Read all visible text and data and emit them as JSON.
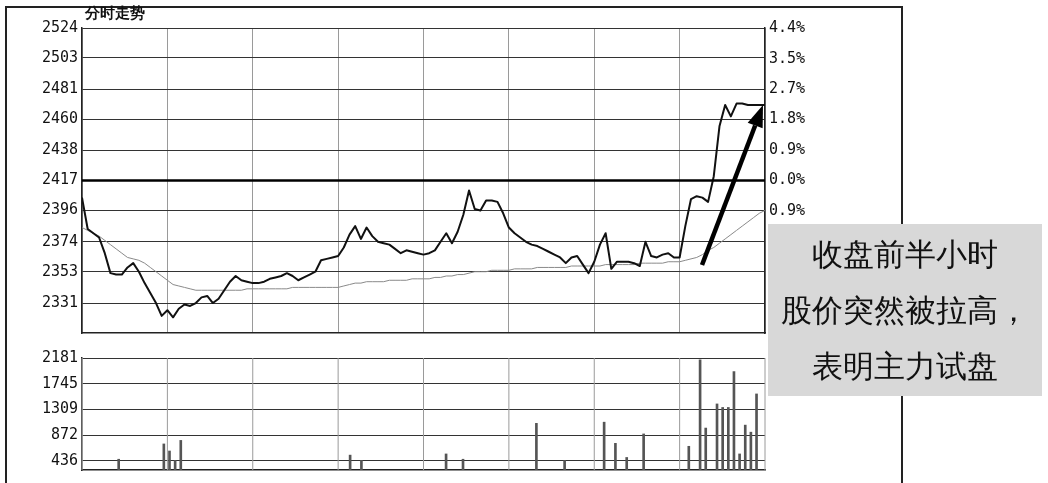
{
  "chart_data": [
    {
      "type": "line",
      "title": "分时走势",
      "categories": [
        null,
        null,
        null,
        null,
        null,
        null,
        null,
        null,
        null,
        null,
        null,
        null,
        null,
        null,
        null,
        null,
        null,
        null,
        null,
        null,
        null,
        null,
        null,
        null,
        null,
        null,
        null,
        null,
        null,
        null,
        null,
        null,
        null,
        null,
        null,
        null,
        null,
        null,
        null,
        null,
        null,
        null,
        null,
        null,
        null,
        null,
        null,
        null,
        null,
        null,
        null,
        null,
        null,
        null,
        null,
        null,
        null,
        null,
        null,
        null,
        null,
        null,
        null,
        null,
        null,
        null,
        null,
        null,
        null,
        null,
        null,
        null,
        null,
        null,
        null,
        null,
        null,
        null,
        null,
        null,
        null,
        null,
        null,
        null,
        null,
        null,
        null,
        null,
        null,
        null,
        null,
        null,
        null,
        null,
        null,
        null,
        null,
        null,
        null,
        null,
        null,
        null,
        null,
        null,
        null,
        null,
        null,
        null,
        null,
        null,
        null,
        null,
        null,
        null,
        null,
        null,
        null,
        null,
        null,
        null,
        null
      ],
      "ylim": [
        2310,
        2524
      ],
      "yticks": [
        2331,
        2353,
        2374,
        2396,
        2417,
        2438,
        2460,
        2481,
        2503,
        2524
      ],
      "y2lim": [
        -4.43,
        4.43
      ],
      "y2ticks": [
        {
          "value": -0.885,
          "label": "0.9%"
        },
        {
          "value": 0,
          "label": "0.0%"
        },
        {
          "value": 0.885,
          "label": "0.9%"
        },
        {
          "value": 1.77,
          "label": "1.8%"
        },
        {
          "value": 2.655,
          "label": "2.7%"
        },
        {
          "value": 3.54,
          "label": "3.5%"
        },
        {
          "value": 4.425,
          "label": "4.4%"
        }
      ],
      "series": [
        {
          "color": "#111111",
          "values": [
            2405,
            2383,
            2380,
            2377,
            2366,
            2352,
            2351,
            2351,
            2356,
            2359,
            2353,
            2345,
            2338,
            2331,
            2322,
            2326,
            2321,
            2327,
            2330,
            2329,
            2331,
            2335,
            2336,
            2331,
            2334,
            2340,
            2346,
            2350,
            2347,
            2346,
            2345,
            2345,
            2346,
            2348,
            2349,
            2350,
            2352,
            2350,
            2347,
            2349,
            2351,
            2353,
            2361,
            2362,
            2363,
            2364,
            2370,
            2379,
            2385,
            2376,
            2384,
            2378,
            2374,
            2373,
            2372,
            2369,
            2366,
            2368,
            2367,
            2366,
            2365,
            2366,
            2368,
            2374,
            2380,
            2373,
            2381,
            2393,
            2410,
            2397,
            2396,
            2403,
            2403,
            2402,
            2394,
            2384,
            2380,
            2377,
            2374,
            2372,
            2371,
            2369,
            2367,
            2365,
            2363,
            2359,
            2363,
            2364,
            2358,
            2352,
            2360,
            2372,
            2380,
            2355,
            2360,
            2360,
            2360,
            2359,
            2357,
            2374,
            2364,
            2363,
            2365,
            2366,
            2363,
            2363,
            2385,
            2404,
            2406,
            2405,
            2402,
            2420,
            2455,
            2470,
            2462,
            2471,
            2471,
            2470,
            2470,
            2470,
            2470
          ]
        },
        {
          "color": "#8a8a8a",
          "values": [
            2384,
            2382,
            2380,
            2378,
            2375,
            2372,
            2369,
            2366,
            2363,
            2362,
            2361,
            2359,
            2356,
            2353,
            2350,
            2347,
            2344,
            2343,
            2342,
            2341,
            2340,
            2340,
            2340,
            2340,
            2340,
            2340,
            2340,
            2340,
            2340,
            2341,
            2341,
            2341,
            2341,
            2341,
            2341,
            2341,
            2341,
            2342,
            2342,
            2342,
            2342,
            2342,
            2342,
            2342,
            2342,
            2342,
            2343,
            2344,
            2345,
            2345,
            2346,
            2346,
            2346,
            2346,
            2347,
            2347,
            2347,
            2347,
            2348,
            2348,
            2348,
            2348,
            2349,
            2349,
            2350,
            2350,
            2351,
            2351,
            2352,
            2353,
            2353,
            2353,
            2354,
            2354,
            2354,
            2354,
            2355,
            2355,
            2355,
            2355,
            2356,
            2356,
            2356,
            2356,
            2356,
            2356,
            2357,
            2357,
            2357,
            2357,
            2357,
            2357,
            2358,
            2358,
            2358,
            2358,
            2358,
            2358,
            2359,
            2359,
            2359,
            2359,
            2359,
            2360,
            2360,
            2360,
            2361,
            2362,
            2363,
            2365,
            2368,
            2370,
            2373,
            2376,
            2379,
            2382,
            2385,
            2388,
            2391,
            2394,
            2396
          ]
        }
      ],
      "ref_lines": [
        {
          "axis": "y",
          "value": 2417,
          "color": "#000000"
        }
      ],
      "grid": true,
      "tick_labels": "y",
      "annotations": [
        "收盘前半小时",
        "股价突然被拉高，",
        "表明主力试盘"
      ]
    },
    {
      "type": "bar",
      "color": "#555555",
      "categories": [
        null,
        null,
        null,
        null,
        null,
        null,
        null,
        null,
        null,
        null,
        null,
        null,
        null,
        null,
        null,
        null,
        null,
        null,
        null,
        null,
        null,
        null,
        null,
        null,
        null,
        null,
        null,
        null,
        null,
        null,
        null,
        null,
        null,
        null,
        null,
        null,
        null,
        null,
        null,
        null,
        null,
        null,
        null,
        null,
        null,
        null,
        null,
        null,
        null,
        null,
        null,
        null,
        null,
        null,
        null,
        null,
        null,
        null,
        null,
        null,
        null,
        null,
        null,
        null,
        null,
        null,
        null,
        null,
        null,
        null,
        null,
        null,
        null,
        null,
        null,
        null,
        null,
        null,
        null,
        null,
        null,
        null,
        null,
        null,
        null,
        null,
        null,
        null,
        null,
        null,
        null,
        null,
        null,
        null,
        null,
        null,
        null,
        null,
        null,
        null,
        null,
        null,
        null,
        null,
        null,
        null,
        null,
        null,
        null,
        null,
        null,
        null,
        null,
        null,
        null,
        null,
        null,
        null,
        null,
        null,
        null
      ],
      "values": [
        null,
        null,
        null,
        null,
        null,
        null,
        460,
        null,
        null,
        null,
        null,
        null,
        null,
        null,
        720,
        600,
        440,
        780,
        null,
        null,
        null,
        null,
        null,
        null,
        null,
        null,
        null,
        null,
        null,
        null,
        null,
        null,
        null,
        null,
        null,
        null,
        null,
        null,
        null,
        null,
        null,
        null,
        null,
        null,
        null,
        null,
        null,
        530,
        null,
        440,
        null,
        null,
        null,
        null,
        null,
        null,
        null,
        null,
        null,
        null,
        null,
        null,
        null,
        null,
        550,
        null,
        null,
        460,
        null,
        null,
        null,
        null,
        null,
        null,
        null,
        null,
        null,
        null,
        null,
        null,
        1070,
        null,
        null,
        null,
        null,
        440,
        null,
        null,
        null,
        null,
        null,
        null,
        1090,
        null,
        730,
        null,
        490,
        null,
        null,
        890,
        null,
        null,
        null,
        null,
        null,
        null,
        null,
        680,
        null,
        2150,
        990,
        null,
        1400,
        1340,
        1340,
        1950,
        550,
        1040,
        920,
        1570,
        null
      ],
      "ylim": [
        277,
        2181
      ],
      "yticks": [
        436,
        872,
        1309,
        1745,
        2181
      ],
      "grid": true,
      "tick_labels": "y"
    }
  ]
}
